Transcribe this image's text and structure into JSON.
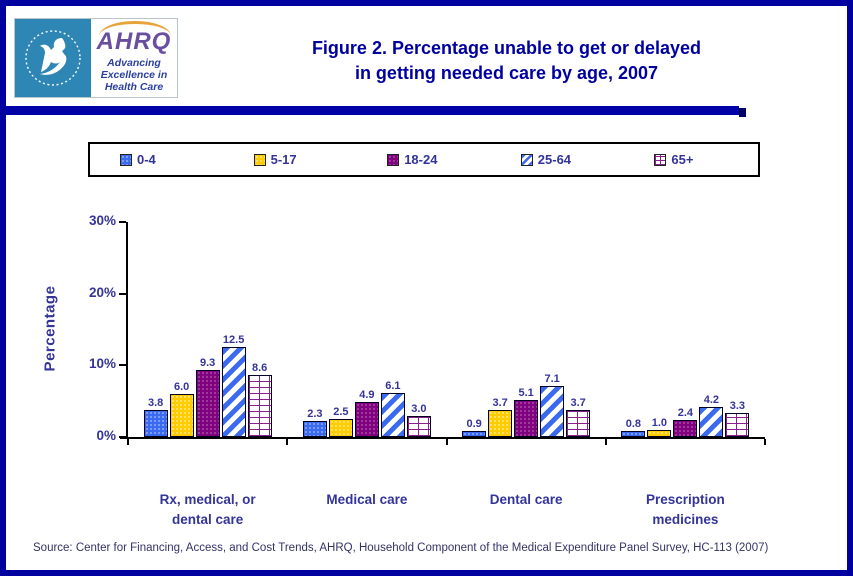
{
  "header": {
    "logo": {
      "acronym": "AHRQ",
      "tagline_lines": [
        "Advancing",
        "Excellence in",
        "Health Care"
      ]
    },
    "title_lines": [
      "Figure 2. Percentage unable to get or delayed",
      "in getting needed care by age, 2007"
    ]
  },
  "chart_data": {
    "type": "bar",
    "title": "Figure 2. Percentage unable to get or delayed in getting needed care by age, 2007",
    "xlabel": "",
    "ylabel": "Percentage",
    "ylim": [
      0,
      30
    ],
    "yticks": [
      0,
      10,
      20,
      30
    ],
    "ytick_labels": [
      "0%",
      "10%",
      "20%",
      "30%"
    ],
    "grid": false,
    "legend_position": "top",
    "categories": [
      "Rx, medical, or dental care",
      "Medical care",
      "Dental care",
      "Prescription medicines"
    ],
    "category_label_lines": [
      [
        "Rx, medical, or",
        "dental care"
      ],
      [
        "Medical care"
      ],
      [
        "Dental care"
      ],
      [
        "Prescription",
        "medicines"
      ]
    ],
    "series": [
      {
        "name": "0-4",
        "pattern": "solid-blue",
        "color": "#3A6AF0",
        "values": [
          3.8,
          2.3,
          0.9,
          0.8
        ]
      },
      {
        "name": "5-17",
        "pattern": "solid-yellow",
        "color": "#FFCC00",
        "values": [
          6.0,
          2.5,
          3.7,
          1.0
        ]
      },
      {
        "name": "18-24",
        "pattern": "solid-purple",
        "color": "#800080",
        "values": [
          9.3,
          4.9,
          5.1,
          2.4
        ]
      },
      {
        "name": "25-64",
        "pattern": "hatch-blue",
        "color": "#3A6AF0",
        "values": [
          12.5,
          6.1,
          7.1,
          4.2
        ]
      },
      {
        "name": "65+",
        "pattern": "brick-purple",
        "color": "#8B1F8B",
        "values": [
          8.6,
          3.0,
          3.7,
          3.3
        ]
      }
    ]
  },
  "source": "Source: Center for Financing, Access, and Cost Trends, AHRQ, Household Component of the Medical Expenditure Panel Survey, HC-113 (2007)",
  "colors": {
    "frame": "#0000A0",
    "title": "#0000A0",
    "label": "#333399",
    "divider": "#0000A8",
    "seal_background": "#2E86B5"
  }
}
